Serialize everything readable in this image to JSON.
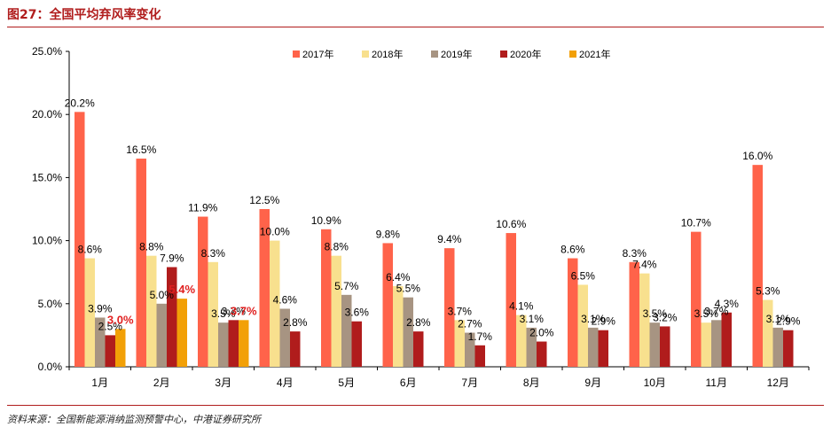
{
  "figure": {
    "title": "图27：全国平均弃风率变化",
    "source": "资料来源：全国新能源消纳监测预警中心，中港证券研究所"
  },
  "chart_data": {
    "type": "bar",
    "categories": [
      "1月",
      "2月",
      "3月",
      "4月",
      "5月",
      "6月",
      "7月",
      "8月",
      "9月",
      "10月",
      "11月",
      "12月"
    ],
    "series": [
      {
        "name": "2017年",
        "color": "#ff634a",
        "values": [
          20.2,
          16.5,
          11.9,
          12.5,
          10.9,
          9.8,
          9.4,
          10.6,
          8.6,
          8.3,
          10.7,
          16.0
        ],
        "labels": [
          "20.2%",
          "16.5%",
          "11.9%",
          "12.5%",
          "10.9%",
          "9.8%",
          "9.4%",
          "10.6%",
          "8.6%",
          "8.3%",
          "10.7%",
          "16.0%"
        ]
      },
      {
        "name": "2018年",
        "color": "#f8e08e",
        "values": [
          8.6,
          8.8,
          8.3,
          10.0,
          8.8,
          6.4,
          3.7,
          4.1,
          6.5,
          7.4,
          3.5,
          5.3
        ],
        "labels": [
          "8.6%",
          "8.8%",
          "8.3%",
          "10.0%",
          "8.8%",
          "6.4%",
          "3.7%",
          "4.1%",
          "6.5%",
          "7.4%",
          "3.5%",
          "5.3%"
        ]
      },
      {
        "name": "2019年",
        "color": "#a79482",
        "values": [
          3.9,
          5.0,
          3.5,
          4.6,
          5.7,
          5.5,
          2.7,
          3.1,
          3.1,
          3.5,
          3.7,
          3.1
        ],
        "labels": [
          "3.9%",
          "5.0%",
          "3.5%",
          "4.6%",
          "5.7%",
          "5.5%",
          "2.7%",
          "3.1%",
          "3.1%",
          "3.5%",
          "3.7%",
          "3.1%"
        ]
      },
      {
        "name": "2020年",
        "color": "#b01c1c",
        "values": [
          2.5,
          7.9,
          3.7,
          2.8,
          3.6,
          2.8,
          1.7,
          2.0,
          2.9,
          3.2,
          4.3,
          2.9
        ],
        "labels": [
          "2.5%",
          "7.9%",
          "3.7%",
          "2.8%",
          "3.6%",
          "2.8%",
          "1.7%",
          "2.0%",
          "2.9%",
          "3.2%",
          "4.3%",
          "2.9%"
        ]
      },
      {
        "name": "2021年",
        "color": "#f2a007",
        "values": [
          3.0,
          5.4,
          3.7,
          null,
          null,
          null,
          null,
          null,
          null,
          null,
          null,
          null
        ],
        "labels": [
          "3.0%",
          "5.4%",
          "3.7%",
          null,
          null,
          null,
          null,
          null,
          null,
          null,
          null,
          null
        ]
      }
    ],
    "highlight_label_color": "#e02020",
    "y_ticks": [
      "0.0%",
      "5.0%",
      "10.0%",
      "15.0%",
      "20.0%",
      "25.0%"
    ],
    "ylim": [
      0,
      25
    ],
    "legend_position": "top",
    "grid": false
  }
}
